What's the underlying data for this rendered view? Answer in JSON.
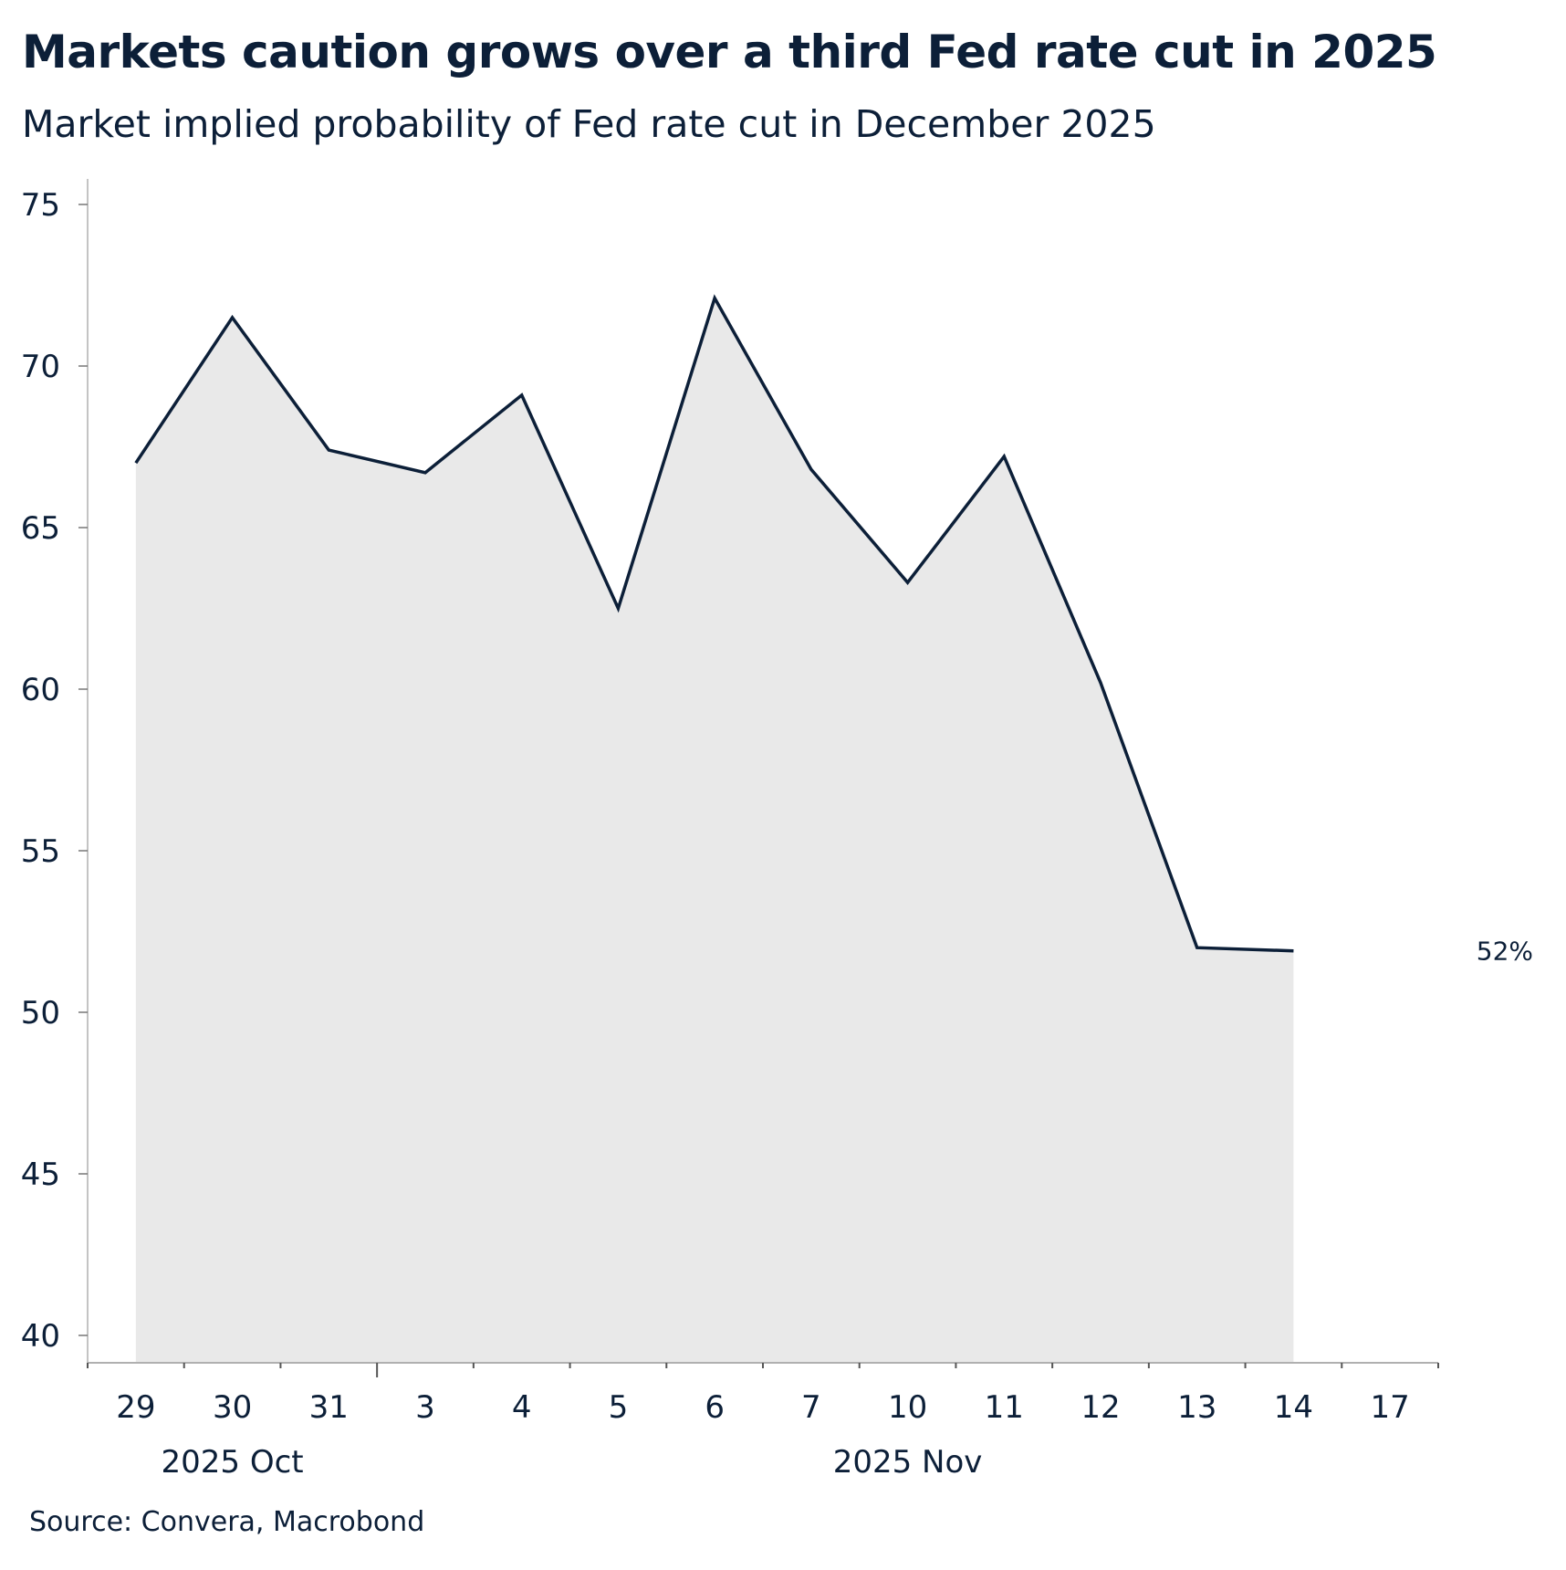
{
  "chart_data": {
    "type": "area",
    "title": "Markets caution grows over a third Fed rate cut in 2025",
    "subtitle": "Market implied probability of Fed rate cut in December 2025",
    "source": "Source: Convera, Macrobond",
    "xlabel": "",
    "ylabel": "",
    "categories": [
      "29",
      "30",
      "31",
      "3",
      "4",
      "5",
      "6",
      "7",
      "10",
      "11",
      "12",
      "13",
      "14",
      "17"
    ],
    "month_labels": [
      {
        "label": "2025 Oct",
        "categories": [
          "29",
          "30",
          "31"
        ]
      },
      {
        "label": "2025 Nov",
        "categories": [
          "3",
          "4",
          "5",
          "6",
          "7",
          "10",
          "11",
          "12",
          "13",
          "14",
          "17"
        ]
      }
    ],
    "values": [
      67.0,
      71.5,
      67.4,
      66.7,
      69.1,
      62.5,
      72.1,
      66.8,
      63.3,
      67.2,
      60.2,
      52.0,
      51.9,
      null
    ],
    "end_label": "52%",
    "ylim": [
      39,
      76
    ],
    "yticks": [
      40,
      45,
      50,
      55,
      60,
      65,
      70,
      75
    ],
    "grid": false,
    "legend": "none",
    "colors": {
      "line": "#0c1f38",
      "fill": "#e9e9e9",
      "axis": "#b0b0b0",
      "text": "#0c1f38"
    }
  }
}
